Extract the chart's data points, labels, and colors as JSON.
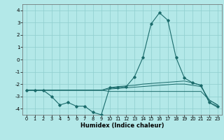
{
  "title": "",
  "xlabel": "Humidex (Indice chaleur)",
  "x": [
    0,
    1,
    2,
    3,
    4,
    5,
    6,
    7,
    8,
    9,
    10,
    11,
    12,
    13,
    14,
    15,
    16,
    17,
    18,
    19,
    20,
    21,
    22,
    23
  ],
  "line1": [
    -2.5,
    -2.5,
    -2.5,
    -3.0,
    -3.7,
    -3.5,
    -3.8,
    -3.8,
    -4.3,
    -4.5,
    -2.3,
    -2.3,
    -2.2,
    -1.4,
    0.15,
    2.9,
    3.8,
    3.2,
    0.15,
    -1.5,
    -1.9,
    -2.1,
    -3.5,
    -3.8
  ],
  "line2": [
    -2.5,
    -2.5,
    -2.5,
    -2.5,
    -2.5,
    -2.5,
    -2.5,
    -2.5,
    -2.5,
    -2.5,
    -2.3,
    -2.2,
    -2.15,
    -2.1,
    -2.0,
    -1.95,
    -1.9,
    -1.85,
    -1.8,
    -1.75,
    -1.9,
    -2.1,
    -3.5,
    -3.9
  ],
  "line3": [
    -2.5,
    -2.5,
    -2.5,
    -2.5,
    -2.5,
    -2.5,
    -2.5,
    -2.5,
    -2.5,
    -2.5,
    -2.4,
    -2.35,
    -2.3,
    -2.25,
    -2.2,
    -2.15,
    -2.1,
    -2.05,
    -2.0,
    -2.0,
    -2.1,
    -2.2,
    -3.3,
    -3.7
  ],
  "line4": [
    -2.5,
    -2.5,
    -2.5,
    -2.5,
    -2.5,
    -2.5,
    -2.5,
    -2.5,
    -2.5,
    -2.5,
    -2.6,
    -2.6,
    -2.6,
    -2.6,
    -2.6,
    -2.6,
    -2.6,
    -2.6,
    -2.6,
    -2.6,
    -2.6,
    -2.6,
    -3.3,
    -3.7
  ],
  "bg_color": "#b3e8e8",
  "grid_color": "#8ecece",
  "line_color": "#1a6b6b",
  "ylim": [
    -4.5,
    4.5
  ],
  "xlim": [
    -0.5,
    23.5
  ],
  "yticks": [
    -4,
    -3,
    -2,
    -1,
    0,
    1,
    2,
    3,
    4
  ],
  "xticks": [
    0,
    1,
    2,
    3,
    4,
    5,
    6,
    7,
    8,
    9,
    10,
    11,
    12,
    13,
    14,
    15,
    16,
    17,
    18,
    19,
    20,
    21,
    22,
    23
  ]
}
